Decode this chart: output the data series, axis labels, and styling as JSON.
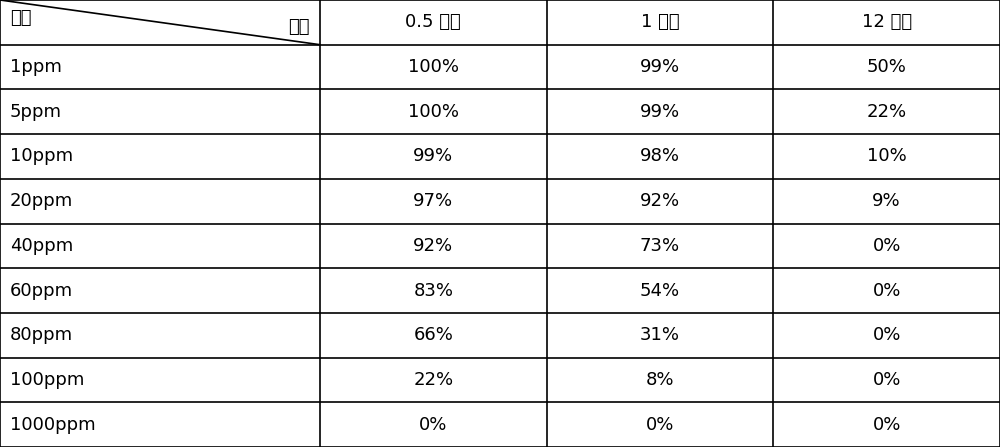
{
  "header_left": "浓度",
  "header_diag_right": "时间",
  "col_headers": [
    "0.5 小时",
    "1 小时",
    "12 小时"
  ],
  "row_labels": [
    "1ppm",
    "5ppm",
    "10ppm",
    "20ppm",
    "40ppm",
    "60ppm",
    "80ppm",
    "100ppm",
    "1000ppm"
  ],
  "data": [
    [
      "100%",
      "99%",
      "50%"
    ],
    [
      "100%",
      "99%",
      "22%"
    ],
    [
      "99%",
      "98%",
      "10%"
    ],
    [
      "97%",
      "92%",
      "9%"
    ],
    [
      "92%",
      "73%",
      "0%"
    ],
    [
      "83%",
      "54%",
      "0%"
    ],
    [
      "66%",
      "31%",
      "0%"
    ],
    [
      "22%",
      "8%",
      "0%"
    ],
    [
      "0%",
      "0%",
      "0%"
    ]
  ],
  "bg_color": "#ffffff",
  "line_color": "#000000",
  "text_color": "#000000",
  "font_size": 13,
  "header_font_size": 13
}
